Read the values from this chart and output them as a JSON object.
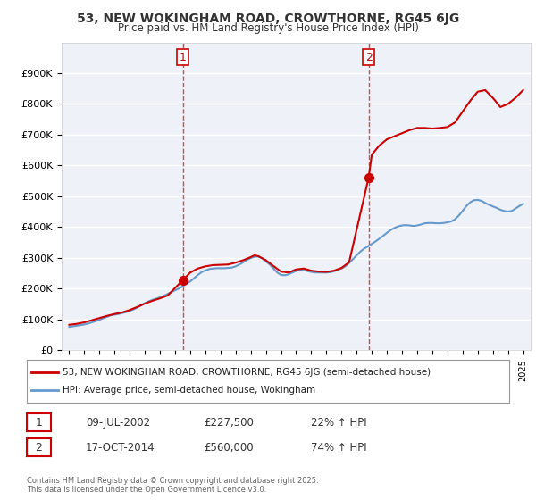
{
  "title": "53, NEW WOKINGHAM ROAD, CROWTHORNE, RG45 6JG",
  "subtitle": "Price paid vs. HM Land Registry's House Price Index (HPI)",
  "ylabel_ticks": [
    "£0",
    "£100K",
    "£200K",
    "£300K",
    "£400K",
    "£500K",
    "£600K",
    "£700K",
    "£800K",
    "£900K"
  ],
  "ylim": [
    0,
    1000000
  ],
  "ytick_vals": [
    0,
    100000,
    200000,
    300000,
    400000,
    500000,
    600000,
    700000,
    800000,
    900000
  ],
  "xlim_start": 1994.5,
  "xlim_end": 2025.5,
  "red_color": "#cc0000",
  "blue_color": "#6699cc",
  "marker1_x": 2002.52,
  "marker1_y": 227500,
  "marker2_x": 2014.79,
  "marker2_y": 560000,
  "vline1_x": 2002.52,
  "vline2_x": 2014.79,
  "legend_line1": "53, NEW WOKINGHAM ROAD, CROWTHORNE, RG45 6JG (semi-detached house)",
  "legend_line2": "HPI: Average price, semi-detached house, Wokingham",
  "annotation1_label": "1",
  "annotation1_date": "09-JUL-2002",
  "annotation1_price": "£227,500",
  "annotation1_hpi": "22% ↑ HPI",
  "annotation2_label": "2",
  "annotation2_date": "17-OCT-2014",
  "annotation2_price": "£560,000",
  "annotation2_hpi": "74% ↑ HPI",
  "copyright_text": "Contains HM Land Registry data © Crown copyright and database right 2025.\nThis data is licensed under the Open Government Licence v3.0.",
  "background_color": "#ffffff",
  "plot_bg_color": "#eef2f8",
  "grid_color": "#ffffff",
  "hpi_series_years": [
    1995,
    1995.25,
    1995.5,
    1995.75,
    1996,
    1996.25,
    1996.5,
    1996.75,
    1997,
    1997.25,
    1997.5,
    1997.75,
    1998,
    1998.25,
    1998.5,
    1998.75,
    1999,
    1999.25,
    1999.5,
    1999.75,
    2000,
    2000.25,
    2000.5,
    2000.75,
    2001,
    2001.25,
    2001.5,
    2001.75,
    2002,
    2002.25,
    2002.5,
    2002.75,
    2003,
    2003.25,
    2003.5,
    2003.75,
    2004,
    2004.25,
    2004.5,
    2004.75,
    2005,
    2005.25,
    2005.5,
    2005.75,
    2006,
    2006.25,
    2006.5,
    2006.75,
    2007,
    2007.25,
    2007.5,
    2007.75,
    2008,
    2008.25,
    2008.5,
    2008.75,
    2009,
    2009.25,
    2009.5,
    2009.75,
    2010,
    2010.25,
    2010.5,
    2010.75,
    2011,
    2011.25,
    2011.5,
    2011.75,
    2012,
    2012.25,
    2012.5,
    2012.75,
    2013,
    2013.25,
    2013.5,
    2013.75,
    2014,
    2014.25,
    2014.5,
    2014.75,
    2015,
    2015.25,
    2015.5,
    2015.75,
    2016,
    2016.25,
    2016.5,
    2016.75,
    2017,
    2017.25,
    2017.5,
    2017.75,
    2018,
    2018.25,
    2018.5,
    2018.75,
    2019,
    2019.25,
    2019.5,
    2019.75,
    2020,
    2020.25,
    2020.5,
    2020.75,
    2021,
    2021.25,
    2021.5,
    2021.75,
    2022,
    2022.25,
    2022.5,
    2022.75,
    2023,
    2023.25,
    2023.5,
    2023.75,
    2024,
    2024.25,
    2024.5,
    2024.75,
    2025
  ],
  "hpi_series_values": [
    75000,
    77000,
    79000,
    81000,
    83000,
    86000,
    90000,
    94000,
    98000,
    103000,
    108000,
    113000,
    115000,
    117000,
    120000,
    123000,
    127000,
    132000,
    138000,
    145000,
    152000,
    158000,
    163000,
    167000,
    171000,
    176000,
    182000,
    188000,
    194000,
    200000,
    207000,
    215000,
    223000,
    233000,
    244000,
    253000,
    259000,
    263000,
    265000,
    266000,
    266000,
    266000,
    267000,
    268000,
    272000,
    278000,
    285000,
    293000,
    299000,
    303000,
    304000,
    298000,
    288000,
    278000,
    265000,
    252000,
    244000,
    243000,
    246000,
    252000,
    257000,
    261000,
    260000,
    257000,
    254000,
    252000,
    252000,
    252000,
    252000,
    253000,
    256000,
    260000,
    265000,
    272000,
    283000,
    295000,
    308000,
    320000,
    330000,
    337000,
    345000,
    353000,
    362000,
    371000,
    381000,
    390000,
    397000,
    402000,
    405000,
    406000,
    405000,
    403000,
    405000,
    408000,
    412000,
    413000,
    413000,
    412000,
    412000,
    413000,
    415000,
    418000,
    425000,
    437000,
    452000,
    468000,
    480000,
    487000,
    488000,
    485000,
    478000,
    472000,
    467000,
    462000,
    456000,
    452000,
    450000,
    452000,
    460000,
    468000,
    475000
  ],
  "red_series_years": [
    1995,
    1995.5,
    1996,
    1996.5,
    1997,
    1997.5,
    1998,
    1998.5,
    1999,
    1999.5,
    2000,
    2000.5,
    2001,
    2001.5,
    2002.52,
    2003,
    2003.5,
    2004,
    2004.5,
    2005,
    2005.5,
    2006,
    2006.5,
    2007,
    2007.25,
    2007.5,
    2008,
    2008.5,
    2009,
    2009.5,
    2010,
    2010.5,
    2011,
    2011.5,
    2012,
    2012.5,
    2013,
    2013.5,
    2014.79,
    2015,
    2015.5,
    2016,
    2016.5,
    2017,
    2017.5,
    2018,
    2018.5,
    2019,
    2019.5,
    2020,
    2020.5,
    2021,
    2021.5,
    2022,
    2022.5,
    2023,
    2023.5,
    2024,
    2024.5,
    2025
  ],
  "red_series_values": [
    82000,
    85000,
    90000,
    97000,
    104000,
    111000,
    117000,
    122000,
    130000,
    140000,
    151000,
    160000,
    168000,
    177000,
    227500,
    252000,
    265000,
    272000,
    276000,
    277000,
    278000,
    284000,
    292000,
    302000,
    308000,
    305000,
    292000,
    273000,
    255000,
    252000,
    262000,
    265000,
    258000,
    255000,
    254000,
    258000,
    267000,
    285000,
    560000,
    635000,
    665000,
    685000,
    695000,
    705000,
    715000,
    722000,
    722000,
    720000,
    722000,
    725000,
    740000,
    775000,
    810000,
    840000,
    845000,
    820000,
    790000,
    800000,
    820000,
    845000
  ]
}
